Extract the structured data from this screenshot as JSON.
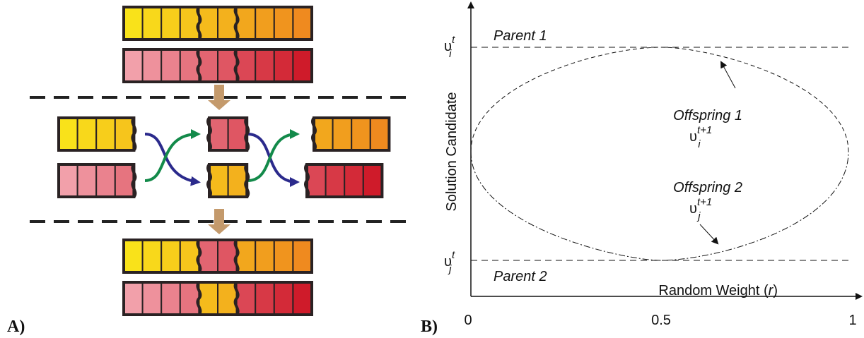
{
  "panel_a": {
    "label": "A)"
  },
  "panel_b": {
    "label": "B)",
    "y_axis_label": "Solution Candidate",
    "x_axis_label": {
      "before": "Random Weight (",
      "var": "r",
      "after": ")"
    },
    "x_ticks": [
      "0",
      "0.5",
      "1"
    ],
    "parent_1": {
      "name": "Parent 1",
      "symbol": {
        "base": "υ",
        "sup": "t",
        "sub": "i"
      }
    },
    "parent_2": {
      "name": "Parent 2",
      "symbol": {
        "base": "υ",
        "sup": "t",
        "sub": "j"
      }
    },
    "offspring_1": {
      "name": "Offspring 1",
      "symbol": {
        "base": "υ",
        "sup": "t+1",
        "sub": "i"
      }
    },
    "offspring_2": {
      "name": "Offspring 2",
      "symbol": {
        "base": "υ",
        "sup": "t+1",
        "sub": "j"
      }
    }
  }
}
